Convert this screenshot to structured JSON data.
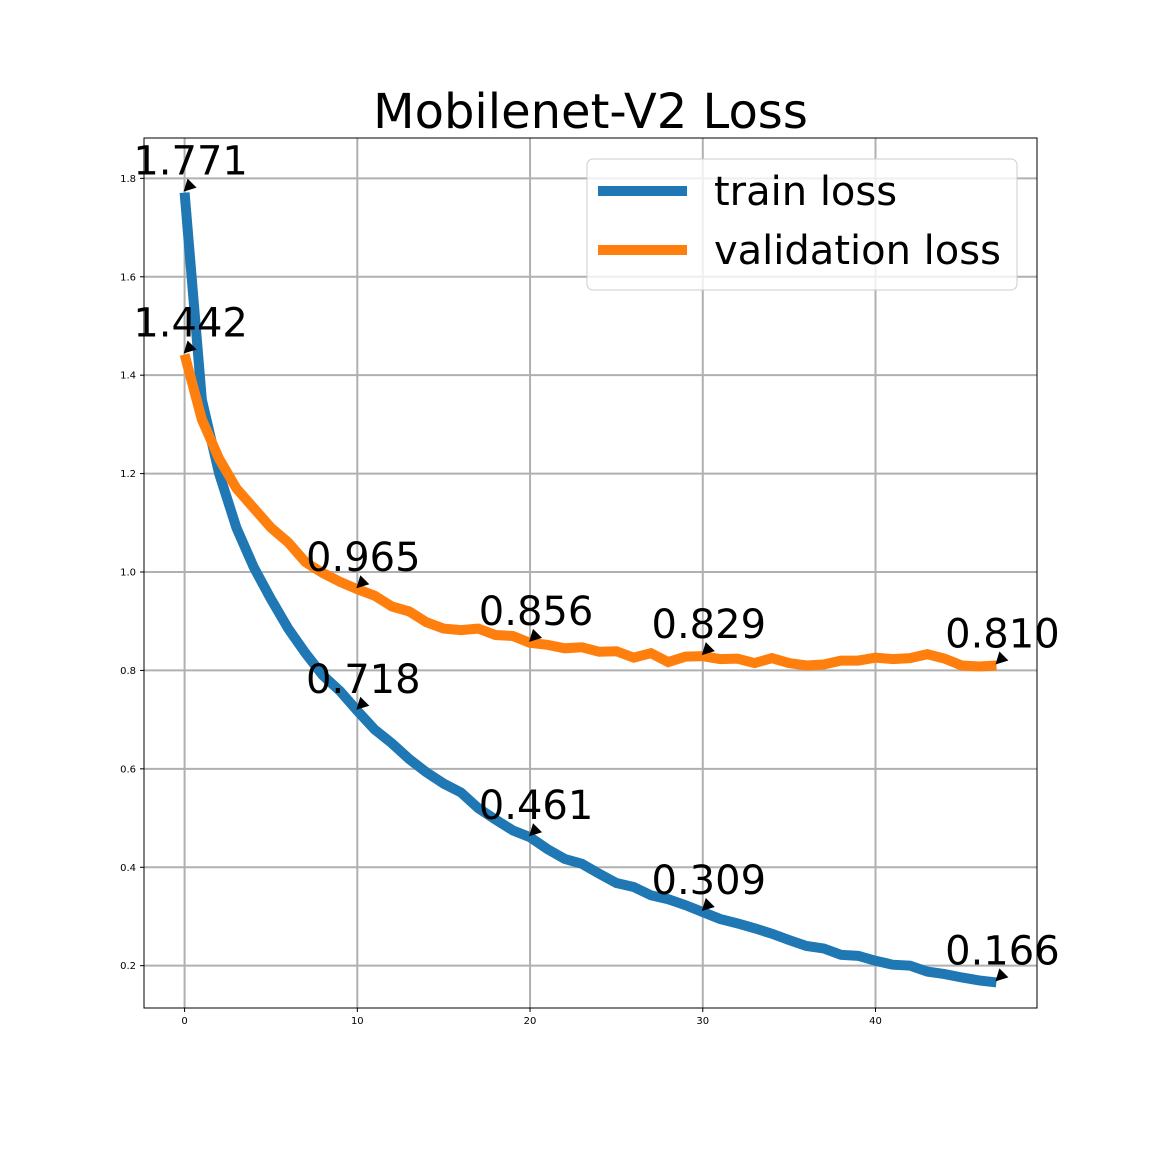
{
  "chart_data": {
    "type": "line",
    "title": "Mobilenet-V2 Loss",
    "xlabel": "",
    "ylabel": "",
    "xlim": [
      -2.35,
      49.35
    ],
    "ylim": [
      0.114,
      1.882
    ],
    "xticks": [
      0,
      10,
      20,
      30,
      40
    ],
    "yticks": [
      0.2,
      0.4,
      0.6,
      0.8,
      1.0,
      1.2,
      1.4,
      1.6,
      1.8
    ],
    "xtick_labels": [
      "0",
      "10",
      "20",
      "30",
      "40"
    ],
    "ytick_labels": [
      "0.2",
      "0.4",
      "0.6",
      "0.8",
      "1.0",
      "1.2",
      "1.4",
      "1.6",
      "1.8"
    ],
    "grid": true,
    "legend_position": "top-right",
    "x": [
      0,
      1,
      2,
      3,
      4,
      5,
      6,
      7,
      8,
      9,
      10,
      11,
      12,
      13,
      14,
      15,
      16,
      17,
      18,
      19,
      20,
      21,
      22,
      23,
      24,
      25,
      26,
      27,
      28,
      29,
      30,
      31,
      32,
      33,
      34,
      35,
      36,
      37,
      38,
      39,
      40,
      41,
      42,
      43,
      44,
      45,
      46,
      47
    ],
    "series": [
      {
        "name": "train loss",
        "color": "#1f77b4",
        "values": [
          1.771,
          1.35,
          1.2,
          1.09,
          1.01,
          0.945,
          0.885,
          0.835,
          0.79,
          0.758,
          0.718,
          0.68,
          0.652,
          0.62,
          0.593,
          0.57,
          0.552,
          0.52,
          0.497,
          0.475,
          0.461,
          0.437,
          0.417,
          0.407,
          0.387,
          0.368,
          0.36,
          0.343,
          0.335,
          0.323,
          0.309,
          0.295,
          0.286,
          0.276,
          0.265,
          0.252,
          0.24,
          0.235,
          0.222,
          0.22,
          0.21,
          0.202,
          0.2,
          0.188,
          0.183,
          0.176,
          0.17,
          0.166
        ]
      },
      {
        "name": "validation loss",
        "color": "#ff7f0e",
        "values": [
          1.442,
          1.31,
          1.23,
          1.17,
          1.13,
          1.09,
          1.06,
          1.02,
          0.998,
          0.98,
          0.965,
          0.952,
          0.93,
          0.92,
          0.898,
          0.885,
          0.882,
          0.885,
          0.872,
          0.87,
          0.856,
          0.852,
          0.845,
          0.847,
          0.838,
          0.839,
          0.826,
          0.835,
          0.817,
          0.828,
          0.829,
          0.823,
          0.824,
          0.815,
          0.825,
          0.815,
          0.81,
          0.812,
          0.82,
          0.82,
          0.826,
          0.823,
          0.825,
          0.833,
          0.824,
          0.81,
          0.808,
          0.81
        ]
      }
    ],
    "annotations": [
      {
        "x": 0,
        "y": 1.771,
        "text": "1.771"
      },
      {
        "x": 10,
        "y": 0.718,
        "text": "0.718"
      },
      {
        "x": 20,
        "y": 0.461,
        "text": "0.461"
      },
      {
        "x": 30,
        "y": 0.309,
        "text": "0.309"
      },
      {
        "x": 47,
        "y": 0.166,
        "text": "0.166"
      },
      {
        "x": 0,
        "y": 1.442,
        "text": "1.442"
      },
      {
        "x": 10,
        "y": 0.965,
        "text": "0.965"
      },
      {
        "x": 20,
        "y": 0.856,
        "text": "0.856"
      },
      {
        "x": 30,
        "y": 0.829,
        "text": "0.829"
      },
      {
        "x": 47,
        "y": 0.81,
        "text": "0.810"
      }
    ]
  }
}
